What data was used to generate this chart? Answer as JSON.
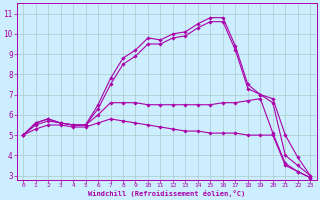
{
  "xlabel": "Windchill (Refroidissement éolien,°C)",
  "background_color": "#cceeff",
  "grid_color": "#aacccc",
  "line_color": "#aa00aa",
  "xlim": [
    -0.5,
    23.5
  ],
  "ylim": [
    2.8,
    11.5
  ],
  "xticks": [
    0,
    1,
    2,
    3,
    4,
    5,
    6,
    7,
    8,
    9,
    10,
    11,
    12,
    13,
    14,
    15,
    16,
    17,
    18,
    19,
    20,
    21,
    22,
    23
  ],
  "yticks": [
    3,
    4,
    5,
    6,
    7,
    8,
    9,
    10,
    11
  ],
  "lines": [
    {
      "x": [
        0,
        1,
        2,
        3,
        4,
        5,
        6,
        7,
        8,
        9,
        10,
        11,
        12,
        13,
        14,
        15,
        16,
        17,
        18,
        19,
        20,
        21,
        22,
        23
      ],
      "y": [
        5.0,
        5.6,
        5.8,
        5.6,
        5.5,
        5.5,
        6.5,
        7.8,
        8.8,
        9.2,
        9.8,
        9.7,
        10.0,
        10.1,
        10.5,
        10.8,
        10.8,
        9.4,
        7.5,
        7.0,
        6.8,
        5.0,
        3.9,
        3.0
      ]
    },
    {
      "x": [
        0,
        1,
        2,
        3,
        4,
        5,
        6,
        7,
        8,
        9,
        10,
        11,
        12,
        13,
        14,
        15,
        16,
        17,
        18,
        19,
        20,
        21,
        22,
        23
      ],
      "y": [
        5.0,
        5.6,
        5.8,
        5.6,
        5.5,
        5.5,
        6.3,
        7.5,
        8.5,
        8.9,
        9.5,
        9.5,
        9.8,
        9.9,
        10.3,
        10.6,
        10.6,
        9.2,
        7.3,
        7.0,
        6.6,
        4.0,
        3.5,
        3.0
      ]
    },
    {
      "x": [
        0,
        1,
        2,
        3,
        4,
        5,
        6,
        7,
        8,
        9,
        10,
        11,
        12,
        13,
        14,
        15,
        16,
        17,
        18,
        19,
        20,
        21,
        22,
        23
      ],
      "y": [
        5.0,
        5.5,
        5.7,
        5.6,
        5.5,
        5.5,
        6.0,
        6.6,
        6.6,
        6.6,
        6.5,
        6.5,
        6.5,
        6.5,
        6.5,
        6.5,
        6.6,
        6.6,
        6.7,
        6.8,
        5.1,
        3.6,
        3.2,
        2.9
      ]
    },
    {
      "x": [
        0,
        1,
        2,
        3,
        4,
        5,
        6,
        7,
        8,
        9,
        10,
        11,
        12,
        13,
        14,
        15,
        16,
        17,
        18,
        19,
        20,
        21,
        22,
        23
      ],
      "y": [
        5.0,
        5.3,
        5.5,
        5.5,
        5.4,
        5.4,
        5.6,
        5.8,
        5.7,
        5.6,
        5.5,
        5.4,
        5.3,
        5.2,
        5.2,
        5.1,
        5.1,
        5.1,
        5.0,
        5.0,
        5.0,
        3.5,
        3.2,
        2.9
      ]
    }
  ]
}
